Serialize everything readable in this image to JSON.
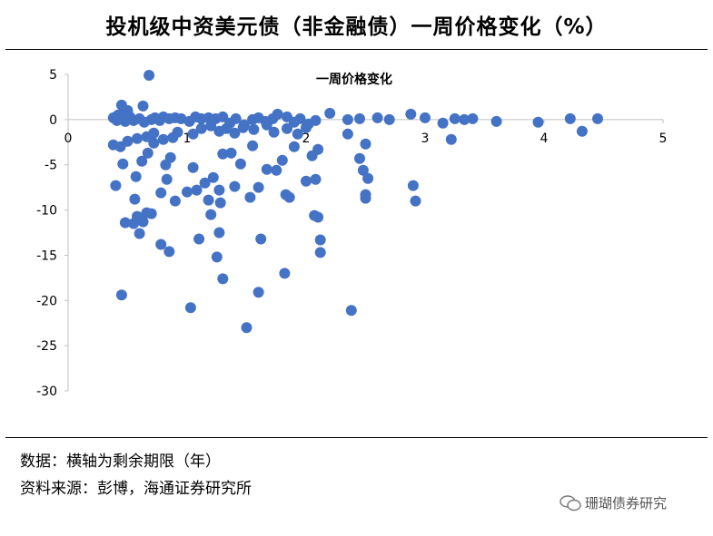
{
  "header": {
    "title": "投机级中资美元债（非金融债）一周价格变化（%）"
  },
  "footer": {
    "note_data": "数据：横轴为剩余期限（年）",
    "note_source": "资料来源：彭博，海通证券研究所",
    "watermark": "珊瑚债券研究"
  },
  "colors": {
    "marker": "#4472C4",
    "axis": "#BFBFBF"
  },
  "chart_data": {
    "type": "scatter",
    "xlim": [
      0,
      5
    ],
    "ylim": [
      -30,
      5
    ],
    "x_ticks": [
      "0",
      "1",
      "2",
      "3",
      "4",
      "5"
    ],
    "y_ticks": [
      "5",
      "0",
      "-5",
      "-10",
      "-15",
      "-20",
      "-25",
      "-30"
    ],
    "grid": false,
    "legend": "none",
    "series": [
      {
        "name": "一周价格变化",
        "points": [
          [
            0.68,
            4.9
          ],
          [
            0.38,
            0.2
          ],
          [
            0.42,
            0.5
          ],
          [
            0.47,
            0.7
          ],
          [
            0.5,
            1.0
          ],
          [
            0.45,
            1.6
          ],
          [
            0.63,
            1.5
          ],
          [
            0.41,
            -0.1
          ],
          [
            0.44,
            0.1
          ],
          [
            0.48,
            -0.2
          ],
          [
            0.52,
            0.3
          ],
          [
            0.55,
            -0.1
          ],
          [
            0.6,
            0.1
          ],
          [
            0.64,
            -0.3
          ],
          [
            0.7,
            0.0
          ],
          [
            0.73,
            0.2
          ],
          [
            0.77,
            -0.1
          ],
          [
            0.8,
            0.3
          ],
          [
            0.85,
            0.1
          ],
          [
            0.9,
            0.2
          ],
          [
            0.95,
            0.1
          ],
          [
            1.02,
            -0.2
          ],
          [
            1.07,
            0.3
          ],
          [
            1.12,
            0.1
          ],
          [
            1.18,
            0.2
          ],
          [
            1.24,
            0.1
          ],
          [
            1.3,
            0.3
          ],
          [
            1.36,
            -0.4
          ],
          [
            1.41,
            0.1
          ],
          [
            1.48,
            -0.6
          ],
          [
            1.55,
            0.0
          ],
          [
            1.6,
            0.2
          ],
          [
            1.66,
            -0.2
          ],
          [
            1.72,
            0.1
          ],
          [
            1.76,
            0.6
          ],
          [
            1.84,
            0.3
          ],
          [
            1.9,
            -0.3
          ],
          [
            1.95,
            0.1
          ],
          [
            2.02,
            -0.5
          ],
          [
            2.08,
            -0.1
          ],
          [
            2.2,
            0.7
          ],
          [
            2.35,
            0.0
          ],
          [
            2.45,
            0.1
          ],
          [
            2.6,
            0.2
          ],
          [
            2.7,
            0.0
          ],
          [
            2.88,
            0.6
          ],
          [
            3.0,
            0.2
          ],
          [
            3.15,
            -0.4
          ],
          [
            3.25,
            0.1
          ],
          [
            3.33,
            0.0
          ],
          [
            3.4,
            0.1
          ],
          [
            3.6,
            -0.2
          ],
          [
            3.95,
            -0.3
          ],
          [
            4.22,
            0.1
          ],
          [
            4.32,
            -1.3
          ],
          [
            4.45,
            0.1
          ],
          [
            0.38,
            -2.8
          ],
          [
            0.44,
            -3.0
          ],
          [
            0.5,
            -2.4
          ],
          [
            0.58,
            -2.1
          ],
          [
            0.66,
            -1.9
          ],
          [
            0.72,
            -1.5
          ],
          [
            0.8,
            -2.2
          ],
          [
            0.88,
            -2.0
          ],
          [
            0.92,
            -1.4
          ],
          [
            1.05,
            -1.6
          ],
          [
            1.12,
            -1.0
          ],
          [
            1.2,
            -0.7
          ],
          [
            1.27,
            -1.3
          ],
          [
            1.33,
            -1.0
          ],
          [
            1.4,
            -1.5
          ],
          [
            1.47,
            -0.9
          ],
          [
            1.56,
            -1.1
          ],
          [
            1.67,
            -0.6
          ],
          [
            1.73,
            -1.4
          ],
          [
            1.84,
            -1.0
          ],
          [
            1.93,
            -1.6
          ],
          [
            2.0,
            -0.9
          ],
          [
            2.35,
            -1.6
          ],
          [
            3.22,
            -2.2
          ],
          [
            0.4,
            -7.3
          ],
          [
            0.46,
            -4.9
          ],
          [
            0.56,
            -8.8
          ],
          [
            0.57,
            -6.3
          ],
          [
            0.62,
            -4.6
          ],
          [
            0.67,
            -3.7
          ],
          [
            0.72,
            -2.6
          ],
          [
            0.82,
            -5.0
          ],
          [
            0.86,
            -4.2
          ],
          [
            0.83,
            -6.6
          ],
          [
            0.78,
            -8.1
          ],
          [
            0.9,
            -9.0
          ],
          [
            1.0,
            -8.0
          ],
          [
            1.05,
            -5.3
          ],
          [
            1.08,
            -7.8
          ],
          [
            1.15,
            -7.0
          ],
          [
            1.18,
            -8.9
          ],
          [
            1.22,
            -6.4
          ],
          [
            1.27,
            -7.8
          ],
          [
            1.28,
            -9.2
          ],
          [
            1.3,
            -3.8
          ],
          [
            1.37,
            -3.7
          ],
          [
            1.4,
            -7.4
          ],
          [
            1.45,
            -4.9
          ],
          [
            1.55,
            -2.9
          ],
          [
            1.53,
            -8.6
          ],
          [
            1.6,
            -7.5
          ],
          [
            1.67,
            -5.5
          ],
          [
            1.75,
            -5.6
          ],
          [
            1.8,
            -4.5
          ],
          [
            1.83,
            -8.3
          ],
          [
            1.86,
            -8.6
          ],
          [
            1.9,
            -3.0
          ],
          [
            2.0,
            -6.8
          ],
          [
            2.05,
            -4.0
          ],
          [
            2.08,
            -6.6
          ],
          [
            2.1,
            -3.3
          ],
          [
            2.5,
            -2.7
          ],
          [
            2.45,
            -4.3
          ],
          [
            2.48,
            -5.6
          ],
          [
            2.52,
            -6.5
          ],
          [
            2.5,
            -8.3
          ],
          [
            2.5,
            -8.7
          ],
          [
            2.9,
            -7.3
          ],
          [
            2.92,
            -9.0
          ],
          [
            0.48,
            -11.4
          ],
          [
            0.55,
            -11.5
          ],
          [
            0.58,
            -10.7
          ],
          [
            0.6,
            -12.6
          ],
          [
            0.63,
            -11.3
          ],
          [
            0.66,
            -10.3
          ],
          [
            0.7,
            -10.4
          ],
          [
            0.78,
            -13.8
          ],
          [
            0.85,
            -14.6
          ],
          [
            1.1,
            -13.2
          ],
          [
            1.2,
            -10.5
          ],
          [
            1.27,
            -12.5
          ],
          [
            1.25,
            -15.2
          ],
          [
            1.3,
            -17.6
          ],
          [
            1.62,
            -13.2
          ],
          [
            2.07,
            -10.6
          ],
          [
            2.1,
            -10.8
          ],
          [
            2.12,
            -13.3
          ],
          [
            2.12,
            -14.7
          ],
          [
            0.45,
            -19.4
          ],
          [
            1.03,
            -20.8
          ],
          [
            1.5,
            -23.0
          ],
          [
            1.6,
            -19.1
          ],
          [
            1.82,
            -17.0
          ],
          [
            2.38,
            -21.1
          ]
        ]
      }
    ]
  }
}
